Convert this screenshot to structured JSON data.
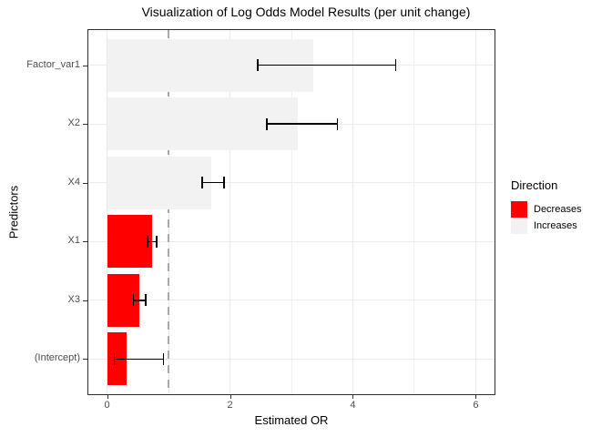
{
  "title": "Visualization of Log Odds Model Results (per unit change)",
  "axes": {
    "x_label": "Estimated OR",
    "y_label": "Predictors"
  },
  "legend": {
    "title": "Direction",
    "position": "right",
    "entries": [
      {
        "label": "Decreases",
        "color": "#ff0000"
      },
      {
        "label": "Increases",
        "color": "#f2f2f2"
      }
    ]
  },
  "style": {
    "bar_decreases": "#ff0000",
    "bar_increases": "#f2f2f2",
    "grid_major": "#ebebeb",
    "grid_minor": "#efefef",
    "panel_border": "#2e2e2e",
    "reference_line": "#a9a9a9",
    "tick_label_color": "#4d4d4d",
    "errorbar_color": "#000000"
  },
  "chart_data": {
    "type": "bar",
    "orientation": "horizontal",
    "title": "Visualization of Log Odds Model Results (per unit change)",
    "xlabel": "Estimated OR",
    "ylabel": "Predictors",
    "categories": [
      "Factor_var1",
      "X2",
      "X4",
      "X1",
      "X3",
      "(Intercept)"
    ],
    "series": [
      {
        "name": "estimated_or",
        "values": [
          3.35,
          3.1,
          1.7,
          0.73,
          0.52,
          0.32
        ]
      },
      {
        "name": "ci_lower",
        "values": [
          2.45,
          2.6,
          1.55,
          0.66,
          0.43,
          0.12
        ]
      },
      {
        "name": "ci_upper",
        "values": [
          4.7,
          3.75,
          1.9,
          0.81,
          0.63,
          0.92
        ]
      }
    ],
    "direction": [
      "Increases",
      "Increases",
      "Increases",
      "Decreases",
      "Decreases",
      "Decreases"
    ],
    "reference_line_x": 1,
    "xlim": [
      -0.305,
      6.305
    ],
    "xticks": [
      0,
      2,
      4,
      6
    ],
    "xticks_minor": [
      1,
      3,
      5
    ],
    "bar_rel_width": 0.9,
    "grid": true,
    "legend_position": "right"
  }
}
